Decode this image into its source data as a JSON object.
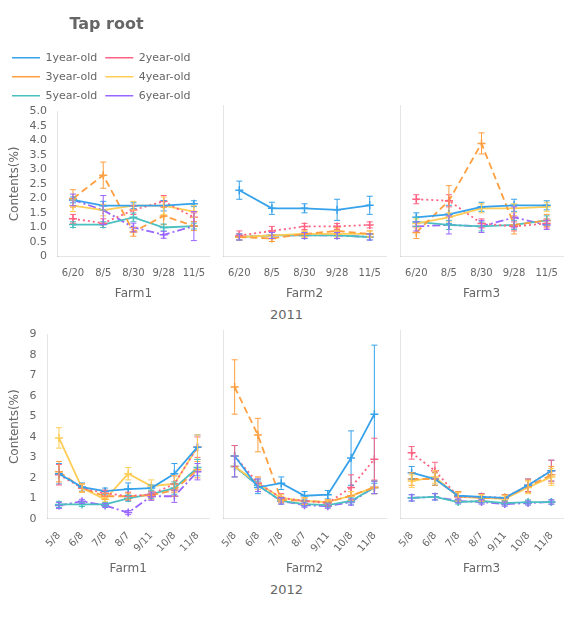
{
  "chart_data": [
    {
      "type": "line",
      "title": "Tap root",
      "ylabel": "Contents(%)",
      "xlabel": "Farm1",
      "categories": [
        "6/20",
        "8/5",
        "8/30",
        "9/28",
        "11/5"
      ],
      "series": [
        {
          "name": "1year-old",
          "line_style": "solid",
          "values": [
            1.95,
            1.75,
            1.75,
            1.75,
            1.82
          ],
          "err": [
            0.1,
            0.15,
            0.1,
            0.18,
            0.1
          ]
        },
        {
          "name": "2year-old",
          "line_style": "dotted",
          "values": [
            1.3,
            1.15,
            1.6,
            1.9,
            1.35
          ],
          "err": [
            0.15,
            0.15,
            0.15,
            0.2,
            0.15
          ]
        },
        {
          "name": "3year-old",
          "line_style": "dashed",
          "values": [
            2.0,
            2.8,
            0.85,
            1.4,
            1.05
          ],
          "err": [
            0.3,
            0.45,
            0.15,
            0.3,
            0.15
          ]
        },
        {
          "name": "4year-old",
          "line_style": "solid",
          "values": [
            1.75,
            1.6,
            1.75,
            1.75,
            1.55
          ],
          "err": [
            0.2,
            0.2,
            0.15,
            0.3,
            0.2
          ]
        },
        {
          "name": "5year-old",
          "line_style": "solid",
          "values": [
            1.1,
            1.1,
            1.35,
            1.0,
            1.05
          ],
          "err": [
            0.1,
            0.1,
            0.15,
            0.12,
            0.1
          ]
        },
        {
          "name": "6year-old",
          "line_style": "dashdot",
          "values": [
            1.95,
            1.6,
            1.0,
            0.75,
            1.05
          ],
          "err": [
            0.2,
            0.5,
            0.15,
            0.12,
            0.5
          ]
        }
      ],
      "ylim": [
        0,
        5
      ],
      "yticks": [
        0,
        0.5,
        {
          "value": 1,
          "label": "1.0"
        },
        1.5,
        {
          "value": 2,
          "label": "2.0"
        },
        2.5,
        {
          "value": 3,
          "label": "3.0"
        },
        3.5,
        {
          "value": 4,
          "label": "4.0"
        },
        4.5,
        {
          "value": 5,
          "label": "5.0"
        }
      ],
      "grid": false,
      "legend": "upper left",
      "marker": "cross"
    },
    {
      "type": "line",
      "xlabel": "Farm2",
      "annotations": [
        "2011"
      ],
      "categories": [
        "6/20",
        "8/5",
        "8/30",
        "9/28",
        "11/5"
      ],
      "series": [
        {
          "name": "1year-old",
          "line_style": "solid",
          "values": [
            2.2,
            1.6,
            1.6,
            1.55,
            1.7
          ],
          "err": [
            0.3,
            0.2,
            0.15,
            0.35,
            0.3
          ]
        },
        {
          "name": "2year-old",
          "line_style": "dotted",
          "values": [
            0.7,
            0.85,
            1.0,
            1.0,
            1.05
          ],
          "err": [
            0.15,
            0.15,
            0.1,
            0.1,
            0.1
          ]
        },
        {
          "name": "3year-old",
          "line_style": "dashed",
          "values": [
            0.65,
            0.6,
            0.75,
            0.85,
            0.75
          ],
          "err": [
            0.1,
            0.1,
            0.1,
            0.1,
            0.1
          ]
        },
        {
          "name": "4year-old",
          "line_style": "solid",
          "values": [
            0.65,
            0.7,
            0.75,
            0.75,
            0.75
          ],
          "err": [
            0.1,
            0.1,
            0.1,
            0.1,
            0.1
          ]
        },
        {
          "name": "5year-old",
          "line_style": "solid",
          "values": [
            0.65,
            0.7,
            0.7,
            0.7,
            0.65
          ],
          "err": [
            0.1,
            0.1,
            0.1,
            0.1,
            0.1
          ]
        },
        {
          "name": "6year-old",
          "line_style": "dashdot",
          "values": [
            0.65,
            0.7,
            0.7,
            0.7,
            0.65
          ],
          "err": [
            0.1,
            0.1,
            0.1,
            0.1,
            0.1
          ]
        }
      ],
      "ylim": [
        0,
        5
      ],
      "yticks": [
        0,
        0.5,
        {
          "value": 1,
          "label": "1.0"
        },
        1.5,
        {
          "value": 2,
          "label": "2.0"
        },
        2.5,
        {
          "value": 3,
          "label": "3.0"
        },
        3.5,
        {
          "value": 4,
          "label": "4.0"
        },
        4.5,
        {
          "value": 5,
          "label": "5.0"
        }
      ],
      "grid": false,
      "tick_labels": "x",
      "marker": "cross"
    },
    {
      "type": "line",
      "xlabel": "Farm3",
      "categories": [
        "6/20",
        "8/5",
        "8/30",
        "9/28",
        "11/5"
      ],
      "series": [
        {
          "name": "1year-old",
          "line_style": "solid",
          "values": [
            1.3,
            1.4,
            1.65,
            1.7,
            1.7
          ],
          "err": [
            0.15,
            0.3,
            0.15,
            0.2,
            0.15
          ]
        },
        {
          "name": "2year-old",
          "line_style": "dotted",
          "values": [
            1.9,
            1.85,
            1.1,
            1.0,
            1.1
          ],
          "err": [
            0.15,
            0.2,
            0.15,
            0.15,
            0.15
          ]
        },
        {
          "name": "3year-old",
          "line_style": "dashed",
          "values": [
            0.8,
            1.85,
            3.75,
            1.05,
            1.2
          ],
          "err": [
            0.2,
            0.5,
            0.35,
            0.3,
            0.2
          ]
        },
        {
          "name": "4year-old",
          "line_style": "solid",
          "values": [
            1.1,
            1.3,
            1.6,
            1.6,
            1.65
          ],
          "err": [
            0.15,
            0.15,
            0.15,
            0.15,
            0.15
          ]
        },
        {
          "name": "5year-old",
          "line_style": "solid",
          "values": [
            1.15,
            1.05,
            1.0,
            1.05,
            1.2
          ],
          "err": [
            0.15,
            0.15,
            0.15,
            0.15,
            0.15
          ]
        },
        {
          "name": "6year-old",
          "line_style": "dashdot",
          "values": [
            1.0,
            1.05,
            1.0,
            1.3,
            1.05
          ],
          "err": [
            0.15,
            0.3,
            0.2,
            0.35,
            0.15
          ]
        }
      ],
      "ylim": [
        0,
        5
      ],
      "yticks": [
        0,
        0.5,
        {
          "value": 1,
          "label": "1.0"
        },
        1.5,
        {
          "value": 2,
          "label": "2.0"
        },
        2.5,
        {
          "value": 3,
          "label": "3.0"
        },
        3.5,
        {
          "value": 4,
          "label": "4.0"
        },
        4.5,
        {
          "value": 5,
          "label": "5.0"
        }
      ],
      "grid": false,
      "tick_labels": "x",
      "marker": "cross"
    },
    {
      "type": "line",
      "ylabel": "Contents(%)",
      "xlabel": "Farm1",
      "categories": [
        "5/8",
        "6/8",
        "7/8",
        "8/7",
        "9/11",
        "10/8",
        "11/8"
      ],
      "series": [
        {
          "name": "1year-old",
          "line_style": "solid",
          "values": [
            2.2,
            1.55,
            1.35,
            1.45,
            1.5,
            2.2,
            3.5
          ],
          "err": [
            0.5,
            0.2,
            0.15,
            0.3,
            0.15,
            0.5,
            0.6
          ]
        },
        {
          "name": "2year-old",
          "line_style": "dotted",
          "values": [
            2.15,
            1.5,
            1.25,
            1.1,
            1.2,
            1.7,
            3.5
          ],
          "err": [
            0.5,
            0.2,
            0.15,
            0.2,
            0.15,
            0.4,
            0.5
          ]
        },
        {
          "name": "3year-old",
          "line_style": "dashed",
          "values": [
            2.3,
            1.5,
            1.1,
            1.1,
            1.15,
            1.4,
            2.4
          ],
          "err": [
            0.5,
            0.2,
            0.15,
            0.15,
            0.2,
            0.3,
            0.4
          ]
        },
        {
          "name": "4year-old",
          "line_style": "solid",
          "values": [
            3.95,
            1.5,
            0.95,
            2.2,
            1.6,
            1.7,
            3.5
          ],
          "err": [
            0.5,
            0.2,
            0.1,
            0.3,
            0.3,
            0.4,
            0.6
          ]
        },
        {
          "name": "5year-old",
          "line_style": "solid",
          "values": [
            0.7,
            0.7,
            0.7,
            1.0,
            1.2,
            1.5,
            2.5
          ],
          "err": [
            0.15,
            0.1,
            0.1,
            0.15,
            0.2,
            0.3,
            0.4
          ]
        },
        {
          "name": "6year-old",
          "line_style": "dashdot",
          "values": [
            0.65,
            0.85,
            0.65,
            0.3,
            1.1,
            1.1,
            2.3
          ],
          "err": [
            0.15,
            0.1,
            0.1,
            0.1,
            0.2,
            0.3,
            0.4
          ]
        }
      ],
      "ylim": [
        0,
        9
      ],
      "yticks": [
        0,
        1,
        2,
        3,
        4,
        5,
        6,
        7,
        8,
        9
      ],
      "grid": false,
      "marker": "cross"
    },
    {
      "type": "line",
      "xlabel": "Farm2",
      "annotations": [
        "2012"
      ],
      "categories": [
        "5/8",
        "6/8",
        "7/8",
        "8/7",
        "9/11",
        "10/8",
        "11/8"
      ],
      "series": [
        {
          "name": "1year-old",
          "line_style": "solid",
          "values": [
            3.0,
            1.5,
            1.7,
            1.1,
            1.15,
            2.9,
            5.0
          ],
          "err": [
            0.5,
            0.3,
            0.3,
            0.2,
            0.2,
            1.3,
            3.3
          ]
        },
        {
          "name": "2year-old",
          "line_style": "dotted",
          "values": [
            3.0,
            1.7,
            1.0,
            0.85,
            0.75,
            1.5,
            2.85
          ],
          "err": [
            0.5,
            0.3,
            0.2,
            0.15,
            0.15,
            0.6,
            1.0
          ]
        },
        {
          "name": "3year-old",
          "line_style": "dashed",
          "values": [
            6.3,
            4.0,
            0.9,
            0.85,
            0.8,
            1.1,
            1.5
          ],
          "err": [
            1.3,
            0.8,
            0.15,
            0.15,
            0.1,
            0.2,
            0.3
          ]
        },
        {
          "name": "4year-old",
          "line_style": "solid",
          "values": [
            2.5,
            1.7,
            1.0,
            0.85,
            0.8,
            1.1,
            1.5
          ],
          "err": [
            0.5,
            0.3,
            0.15,
            0.15,
            0.1,
            0.2,
            0.3
          ]
        },
        {
          "name": "5year-old",
          "line_style": "solid",
          "values": [
            2.5,
            1.6,
            0.85,
            0.7,
            0.65,
            0.85,
            1.5
          ],
          "err": [
            0.5,
            0.3,
            0.15,
            0.1,
            0.1,
            0.15,
            0.3
          ]
        },
        {
          "name": "6year-old",
          "line_style": "dashdot",
          "values": [
            2.5,
            1.6,
            0.85,
            0.65,
            0.6,
            0.8,
            1.5
          ],
          "err": [
            0.5,
            0.3,
            0.15,
            0.1,
            0.1,
            0.15,
            0.3
          ]
        }
      ],
      "ylim": [
        0,
        9
      ],
      "yticks": [
        0,
        1,
        2,
        3,
        4,
        5,
        6,
        7,
        8,
        9
      ],
      "grid": false,
      "tick_labels": "x",
      "marker": "cross"
    },
    {
      "type": "line",
      "xlabel": "Farm3",
      "categories": [
        "5/8",
        "6/8",
        "7/8",
        "8/7",
        "9/11",
        "10/8",
        "11/8"
      ],
      "series": [
        {
          "name": "1year-old",
          "line_style": "solid",
          "values": [
            2.2,
            1.9,
            1.1,
            1.05,
            1.0,
            1.6,
            2.3
          ],
          "err": [
            0.3,
            0.3,
            0.2,
            0.15,
            0.15,
            0.3,
            0.5
          ]
        },
        {
          "name": "2year-old",
          "line_style": "dotted",
          "values": [
            3.15,
            2.3,
            1.05,
            1.05,
            1.0,
            1.6,
            2.3
          ],
          "err": [
            0.3,
            0.4,
            0.2,
            0.15,
            0.15,
            0.3,
            0.5
          ]
        },
        {
          "name": "3year-old",
          "line_style": "dashed",
          "values": [
            1.9,
            1.9,
            1.1,
            1.0,
            1.0,
            1.55,
            2.1
          ],
          "err": [
            0.3,
            0.3,
            0.2,
            0.15,
            0.15,
            0.3,
            0.4
          ]
        },
        {
          "name": "4year-old",
          "line_style": "solid",
          "values": [
            1.8,
            2.0,
            1.05,
            1.0,
            0.95,
            1.5,
            2.0
          ],
          "err": [
            0.3,
            0.3,
            0.2,
            0.15,
            0.15,
            0.3,
            0.4
          ]
        },
        {
          "name": "5year-old",
          "line_style": "solid",
          "values": [
            1.0,
            1.05,
            0.8,
            0.85,
            0.75,
            0.8,
            0.8
          ],
          "err": [
            0.15,
            0.15,
            0.1,
            0.1,
            0.1,
            0.1,
            0.1
          ]
        },
        {
          "name": "6year-old",
          "line_style": "dashdot",
          "values": [
            1.0,
            1.05,
            0.85,
            0.8,
            0.7,
            0.75,
            0.8
          ],
          "err": [
            0.15,
            0.15,
            0.1,
            0.1,
            0.1,
            0.1,
            0.1
          ]
        }
      ],
      "ylim": [
        0,
        9
      ],
      "yticks": [
        0,
        1,
        2,
        3,
        4,
        5,
        6,
        7,
        8,
        9
      ],
      "grid": false,
      "tick_labels": "x",
      "marker": "cross"
    }
  ]
}
